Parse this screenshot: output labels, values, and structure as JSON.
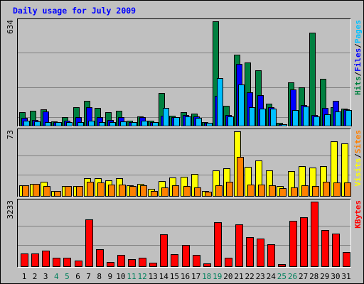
{
  "chart_data": {
    "type": "bar",
    "title": "Daily usage for July 2009",
    "categories": [
      "1",
      "2",
      "3",
      "4",
      "5",
      "6",
      "7",
      "8",
      "9",
      "10",
      "11",
      "12",
      "13",
      "14",
      "15",
      "16",
      "17",
      "18",
      "19",
      "20",
      "21",
      "22",
      "23",
      "24",
      "25",
      "26",
      "27",
      "28",
      "29",
      "30",
      "31"
    ],
    "weekend_days": [
      "4",
      "5",
      "11",
      "12",
      "18",
      "19",
      "25",
      "26"
    ],
    "colors": {
      "hits": "#008040",
      "files": "#0000ff",
      "pages": "#00c0ff",
      "visits": "#ffff00",
      "sites": "#ff8000",
      "kbytes": "#ff0000",
      "title": "#0000ff",
      "panel": "#c0c0c0",
      "weekday_label": "#000000",
      "weekend_label": "#00805c"
    },
    "panels": [
      {
        "name": "hits-files-pages",
        "ymax_label": "634",
        "ymax": 634,
        "legend": [
          {
            "text": "Hits",
            "color": "#008040"
          },
          {
            "text": "/",
            "color": "#000000"
          },
          {
            "text": "Files",
            "color": "#0000ff"
          },
          {
            "text": "/",
            "color": "#000000"
          },
          {
            "text": "Pages",
            "color": "#00c0ff"
          }
        ],
        "series": [
          {
            "name": "Hits",
            "color": "#008040",
            "values": [
              81,
              92,
              100,
              27,
              51,
              110,
              150,
              108,
              83,
              92,
              30,
              55,
              31,
              197,
              60,
              81,
              75,
              20,
              634,
              120,
              433,
              382,
              338,
              134,
              18,
              262,
              234,
              567,
              283,
              113,
              105
            ]
          },
          {
            "name": "Files",
            "color": "#0000ff",
            "values": [
              47,
              35,
              85,
              21,
              29,
              51,
              113,
              52,
              34,
              52,
              20,
              51,
              21,
              59,
              53,
              64,
              57,
              16,
              183,
              64,
              376,
              201,
              186,
              113,
              8,
              221,
              123,
              65,
              109,
              150,
              100
            ]
          },
          {
            "name": "Pages",
            "color": "#00c0ff",
            "values": [
              30,
              25,
              22,
              21,
              21,
              20,
              30,
              21,
              21,
              24,
              20,
              29,
              21,
              109,
              51,
              56,
              46,
              16,
              290,
              55,
              252,
              112,
              104,
              102,
              8,
              97,
              118,
              58,
              70,
              88,
              97
            ]
          }
        ]
      },
      {
        "name": "visits-sites",
        "ymax_label": "73",
        "ymax": 73,
        "legend": [
          {
            "text": "Visits",
            "color": "#ffff00"
          },
          {
            "text": "/",
            "color": "#000000"
          },
          {
            "text": "Sites",
            "color": "#ff8000"
          }
        ],
        "series": [
          {
            "name": "Visits",
            "color": "#ffff00",
            "values": [
              12,
              14,
              16,
              6,
              11,
              11,
              20,
              20,
              18,
              20,
              12,
              14,
              8,
              17,
              21,
              22,
              25,
              6,
              29,
              31,
              73,
              33,
              40,
              29,
              11,
              28,
              34,
              32,
              34,
              62,
              59
            ]
          },
          {
            "name": "Sites",
            "color": "#ff8000",
            "values": [
              12,
              14,
              11,
              6,
              11,
              11,
              16,
              15,
              13,
              13,
              11,
              12,
              6,
              10,
              12,
              11,
              10,
              5,
              12,
              16,
              44,
              13,
              13,
              12,
              9,
              10,
              12,
              11,
              16,
              15,
              15
            ]
          }
        ]
      },
      {
        "name": "kbytes",
        "ymax_label": "3233",
        "ymax": 3233,
        "legend": [
          {
            "text": "KBytes",
            "color": "#ff0000"
          }
        ],
        "series": [
          {
            "name": "KBytes",
            "color": "#ff0000",
            "values": [
              651,
              629,
              782,
              412,
              425,
              300,
              2350,
              862,
              220,
              576,
              355,
              441,
              190,
              1605,
              592,
              1050,
              581,
              140,
              2200,
              413,
              2090,
              1460,
              1400,
              1090,
              120,
              2280,
              2450,
              3233,
              1820,
              1650,
              720
            ]
          }
        ]
      }
    ]
  }
}
